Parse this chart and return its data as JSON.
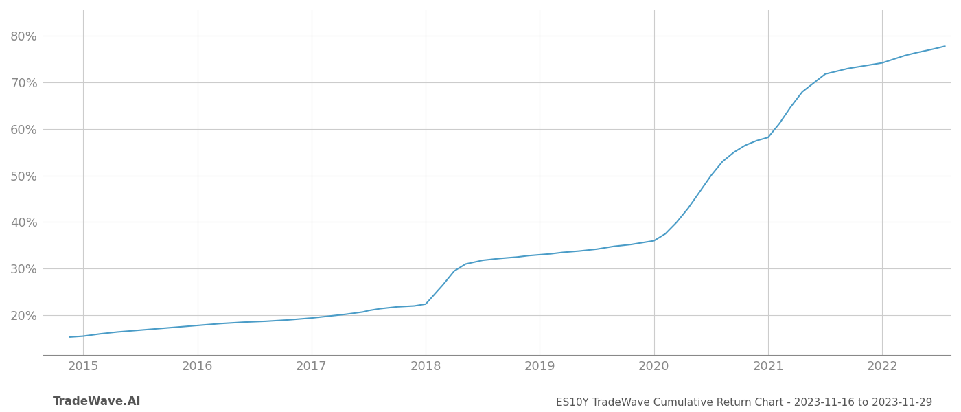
{
  "title": "ES10Y TradeWave Cumulative Return Chart - 2023-11-16 to 2023-11-29",
  "watermark": "TradeWave.AI",
  "line_color": "#4a9cc7",
  "background_color": "#ffffff",
  "grid_color": "#cccccc",
  "x_years": [
    2015,
    2016,
    2017,
    2018,
    2019,
    2020,
    2021,
    2022
  ],
  "y_ticks": [
    0.2,
    0.3,
    0.4,
    0.5,
    0.6,
    0.7,
    0.8
  ],
  "ylim": [
    0.115,
    0.855
  ],
  "xlim": [
    2014.65,
    2022.6
  ],
  "data_x": [
    2014.88,
    2015.0,
    2015.15,
    2015.3,
    2015.5,
    2015.7,
    2015.9,
    2016.0,
    2016.2,
    2016.4,
    2016.6,
    2016.8,
    2016.95,
    2017.0,
    2017.15,
    2017.3,
    2017.45,
    2017.5,
    2017.6,
    2017.75,
    2017.9,
    2018.0,
    2018.15,
    2018.25,
    2018.35,
    2018.5,
    2018.65,
    2018.8,
    2018.9,
    2019.0,
    2019.1,
    2019.2,
    2019.35,
    2019.5,
    2019.65,
    2019.8,
    2019.9,
    2020.0,
    2020.1,
    2020.2,
    2020.3,
    2020.4,
    2020.5,
    2020.6,
    2020.7,
    2020.8,
    2020.9,
    2021.0,
    2021.1,
    2021.2,
    2021.3,
    2021.5,
    2021.7,
    2021.9,
    2022.0,
    2022.1,
    2022.2,
    2022.3,
    2022.45,
    2022.55
  ],
  "data_y": [
    0.153,
    0.155,
    0.16,
    0.164,
    0.168,
    0.172,
    0.176,
    0.178,
    0.182,
    0.185,
    0.187,
    0.19,
    0.193,
    0.194,
    0.198,
    0.202,
    0.207,
    0.21,
    0.214,
    0.218,
    0.22,
    0.224,
    0.265,
    0.295,
    0.31,
    0.318,
    0.322,
    0.325,
    0.328,
    0.33,
    0.332,
    0.335,
    0.338,
    0.342,
    0.348,
    0.352,
    0.356,
    0.36,
    0.375,
    0.4,
    0.43,
    0.465,
    0.5,
    0.53,
    0.55,
    0.565,
    0.575,
    0.582,
    0.612,
    0.648,
    0.68,
    0.718,
    0.73,
    0.738,
    0.742,
    0.75,
    0.758,
    0.764,
    0.772,
    0.778
  ],
  "title_fontsize": 11,
  "watermark_fontsize": 12,
  "tick_fontsize": 13,
  "tick_color": "#888888",
  "spine_color": "#888888"
}
